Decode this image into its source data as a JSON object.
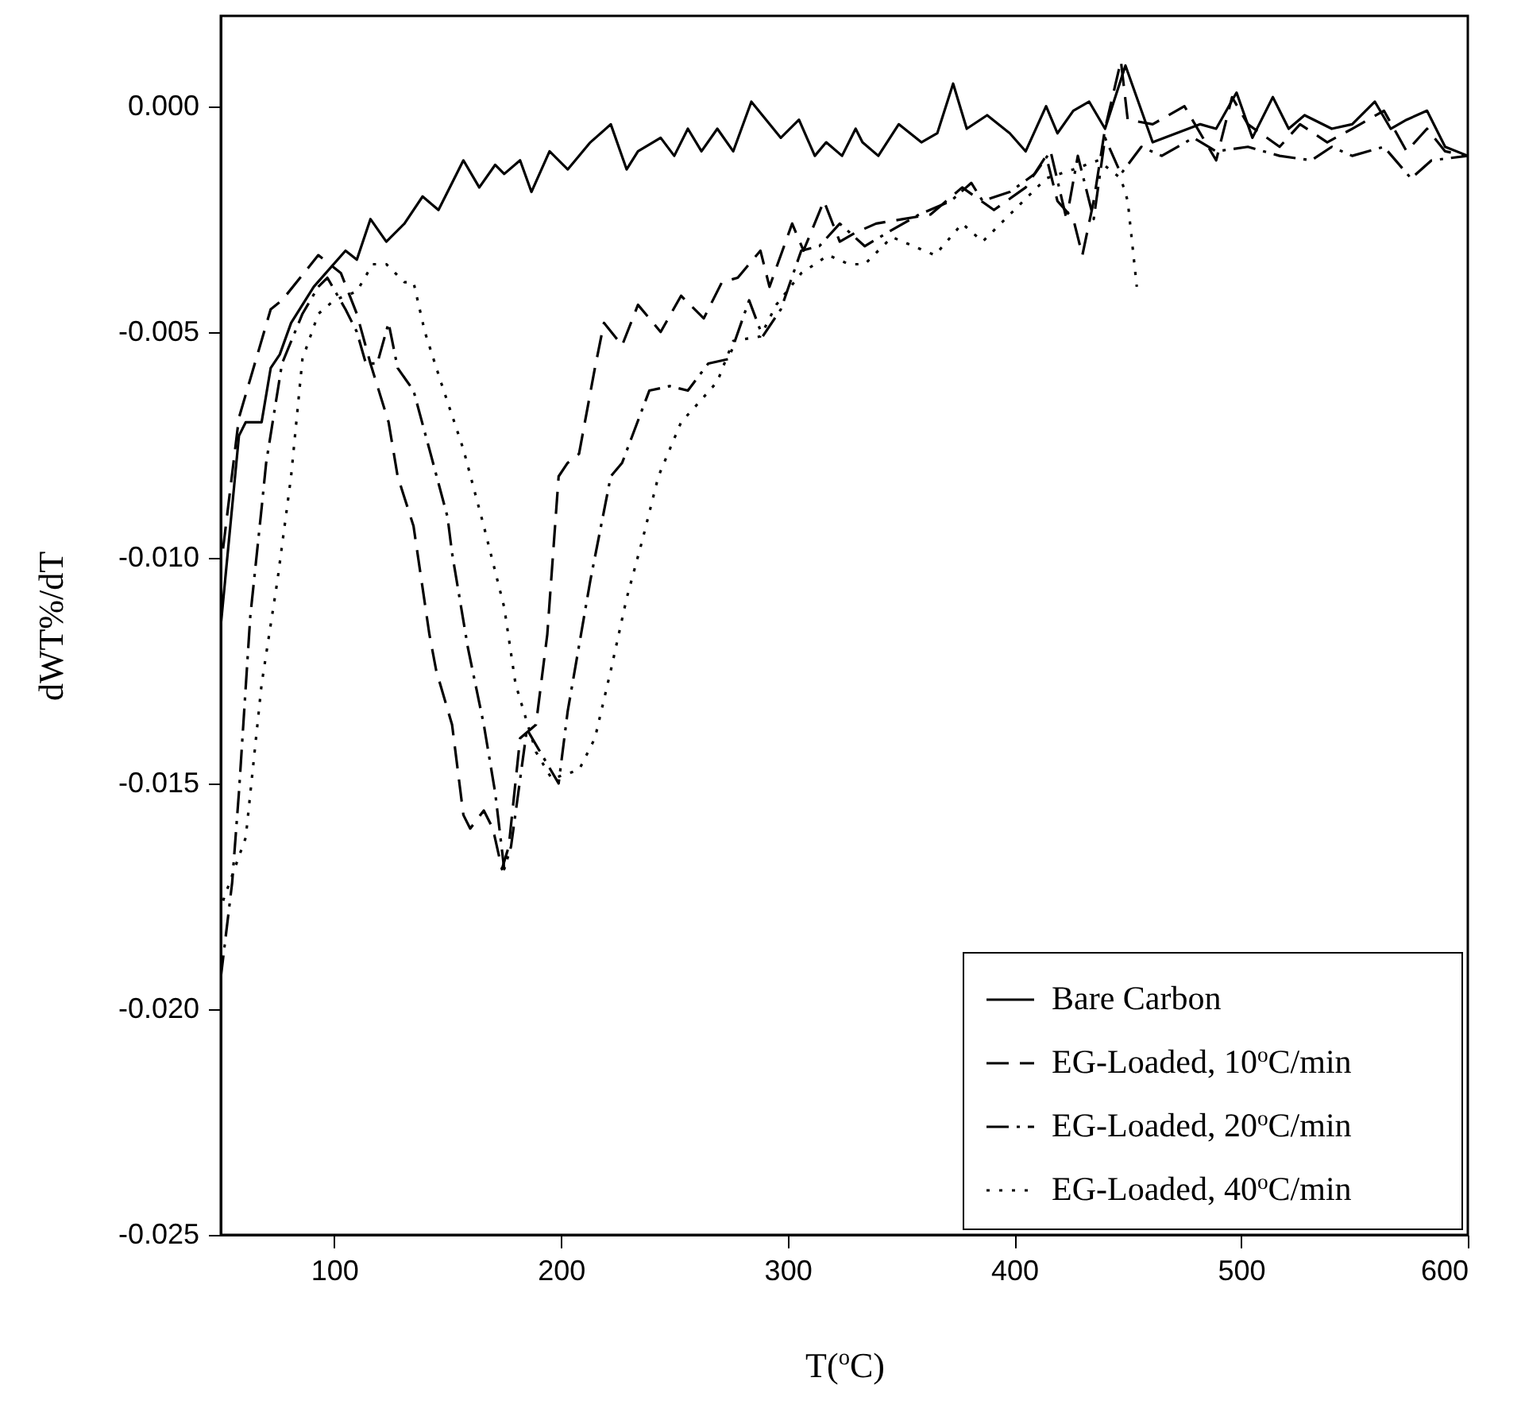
{
  "chart_data": {
    "type": "line",
    "xlabel": "T($^{o}$C)",
    "ylabel": "dWT%/dT",
    "xlim": [
      50,
      600
    ],
    "ylim": [
      -0.025,
      0.002
    ],
    "xticks": [
      100,
      200,
      300,
      400,
      500,
      600
    ],
    "yticks": [
      {
        "value": -0.025,
        "label": "-0.025"
      },
      {
        "value": -0.02,
        "label": "-0.020"
      },
      {
        "value": -0.015,
        "label": "-0.015"
      },
      {
        "value": -0.01,
        "label": "-0.010"
      },
      {
        "value": -0.005,
        "label": "-0.005"
      },
      {
        "value": 0,
        "label": "0.000"
      }
    ],
    "grid": false,
    "legend": "bottom right",
    "series": [
      {
        "name": "Bare Carbon",
        "color": "#000000",
        "line_style": "solid",
        "x": [
          50,
          58,
          61,
          68,
          72,
          76,
          81,
          86,
          91,
          105,
          110,
          116,
          123,
          131,
          139,
          146,
          157,
          164,
          171,
          175,
          182,
          187,
          195,
          203,
          213,
          222,
          229,
          234,
          244,
          250,
          256,
          262,
          269,
          276,
          284,
          297,
          305,
          312,
          317,
          324,
          330,
          333,
          340,
          349,
          359,
          366,
          373,
          379,
          388,
          398,
          405,
          414,
          419,
          426,
          433,
          440,
          449,
          461,
          482,
          489,
          498,
          505,
          514,
          521,
          528,
          540,
          549,
          559,
          566,
          573,
          582,
          590,
          600
        ],
        "values": [
          -0.0115,
          -0.0073,
          -0.007,
          -0.007,
          -0.0058,
          -0.0055,
          -0.0048,
          -0.0044,
          -0.004,
          -0.0032,
          -0.0034,
          -0.0025,
          -0.003,
          -0.0026,
          -0.002,
          -0.0023,
          -0.0012,
          -0.0018,
          -0.0013,
          -0.0015,
          -0.0012,
          -0.0019,
          -0.001,
          -0.0014,
          -0.0008,
          -0.0004,
          -0.0014,
          -0.001,
          -0.0007,
          -0.0011,
          -0.0005,
          -0.001,
          -0.0005,
          -0.001,
          0.0001,
          -0.0007,
          -0.0003,
          -0.0011,
          -0.0008,
          -0.0011,
          -0.0005,
          -0.0008,
          -0.0011,
          -0.0004,
          -0.0008,
          -0.0006,
          0.0005,
          -0.0005,
          -0.0002,
          -0.0006,
          -0.001,
          0,
          -0.0006,
          -0.0001,
          0.0001,
          -0.0005,
          0.0009,
          -0.0008,
          -0.0004,
          -0.0005,
          0.0003,
          -0.0007,
          0.0002,
          -0.0005,
          -0.0002,
          -0.0005,
          -0.0004,
          0.0001,
          -0.0005,
          -0.0003,
          -0.0001,
          -0.0009,
          -0.0011
        ]
      },
      {
        "name": "EG-Loaded, 10$^{o}$C/min",
        "color": "#000000",
        "line_style": "dashed",
        "x": [
          51,
          58,
          72,
          77,
          93,
          103,
          110,
          116,
          124,
          128,
          135,
          142,
          145,
          152,
          157,
          160,
          166,
          170,
          174,
          177,
          182,
          189,
          194,
          199,
          203,
          208,
          215,
          219,
          227,
          234,
          244,
          253,
          263,
          271,
          278,
          288,
          292,
          302,
          307,
          316,
          323,
          330,
          339,
          351,
          363,
          377,
          391,
          405,
          414,
          419,
          426,
          430,
          435,
          440,
          447,
          450,
          461,
          475,
          489,
          496,
          503,
          517,
          526,
          538,
          549,
          563,
          573,
          582,
          590,
          600
        ],
        "values": [
          -0.0098,
          -0.0069,
          -0.0045,
          -0.0043,
          -0.0033,
          -0.0037,
          -0.0046,
          -0.0057,
          -0.007,
          -0.0082,
          -0.0093,
          -0.0117,
          -0.0125,
          -0.0137,
          -0.0157,
          -0.016,
          -0.0156,
          -0.016,
          -0.0169,
          -0.0164,
          -0.014,
          -0.0137,
          -0.0117,
          -0.0082,
          -0.0079,
          -0.0077,
          -0.0058,
          -0.0048,
          -0.0053,
          -0.0044,
          -0.005,
          -0.0042,
          -0.0047,
          -0.0039,
          -0.0038,
          -0.0032,
          -0.004,
          -0.0026,
          -0.0032,
          -0.0021,
          -0.003,
          -0.0028,
          -0.0026,
          -0.0025,
          -0.0024,
          -0.0018,
          -0.0023,
          -0.0018,
          -0.0011,
          -0.0021,
          -0.0025,
          -0.0033,
          -0.0021,
          -0.0005,
          0.001,
          -0.0003,
          -0.0004,
          0,
          -0.0012,
          0.0002,
          -0.0004,
          -0.0009,
          -0.0004,
          -0.0008,
          -0.0005,
          -0.0001,
          -0.001,
          -0.0005,
          -0.001,
          -0.0011
        ]
      },
      {
        "name": "EG-Loaded, 20$^{o}$C/min",
        "color": "#000000",
        "line_style": "dashdot",
        "x": [
          50,
          55,
          58,
          63,
          68,
          70,
          77,
          86,
          93,
          97,
          105,
          110,
          114,
          119,
          124,
          128,
          135,
          142,
          150,
          152,
          159,
          166,
          171,
          175,
          178,
          185,
          199,
          203,
          213,
          222,
          227,
          239,
          248,
          256,
          265,
          274,
          283,
          289,
          297,
          306,
          314,
          323,
          334,
          344,
          358,
          372,
          381,
          386,
          398,
          409,
          416,
          423,
          428,
          435,
          440,
          447,
          456,
          465,
          479,
          489,
          503,
          517,
          531,
          540,
          549,
          563,
          575,
          584,
          600
        ],
        "values": [
          -0.0193,
          -0.0172,
          -0.0152,
          -0.0113,
          -0.0089,
          -0.0079,
          -0.0057,
          -0.0046,
          -0.004,
          -0.0038,
          -0.0045,
          -0.005,
          -0.0057,
          -0.0057,
          -0.0048,
          -0.0058,
          -0.0063,
          -0.0076,
          -0.0091,
          -0.0099,
          -0.012,
          -0.0137,
          -0.0152,
          -0.0169,
          -0.0164,
          -0.0138,
          -0.015,
          -0.0134,
          -0.0105,
          -0.0082,
          -0.0079,
          -0.0063,
          -0.0062,
          -0.0063,
          -0.0057,
          -0.0056,
          -0.0043,
          -0.0051,
          -0.0045,
          -0.0032,
          -0.0031,
          -0.0026,
          -0.0031,
          -0.0028,
          -0.0024,
          -0.0021,
          -0.0017,
          -0.0021,
          -0.0019,
          -0.0015,
          -0.001,
          -0.0025,
          -0.0011,
          -0.0025,
          -0.0007,
          -0.0015,
          -0.0009,
          -0.0011,
          -0.0007,
          -0.001,
          -0.0009,
          -0.0011,
          -0.0012,
          -0.0009,
          -0.0011,
          -0.0009,
          -0.0016,
          -0.0012,
          -0.0011
        ]
      },
      {
        "name": "EG-Loaded, 40$^{o}$C/min",
        "color": "#000000",
        "line_style": "dotted",
        "x": [
          51,
          61,
          68,
          75,
          81,
          86,
          93,
          100,
          110,
          117,
          123,
          131,
          135,
          140,
          147,
          157,
          166,
          175,
          180,
          189,
          196,
          208,
          215,
          222,
          229,
          236,
          243,
          253,
          262,
          269,
          276,
          288,
          295,
          306,
          318,
          327,
          334,
          346,
          365,
          377,
          386,
          400,
          414,
          426,
          437,
          447,
          450,
          454
        ],
        "values": [
          -0.0176,
          -0.0162,
          -0.0128,
          -0.0105,
          -0.0082,
          -0.0056,
          -0.0046,
          -0.0043,
          -0.0041,
          -0.0035,
          -0.0035,
          -0.0039,
          -0.0039,
          -0.005,
          -0.0061,
          -0.0076,
          -0.0093,
          -0.0111,
          -0.0128,
          -0.0143,
          -0.0149,
          -0.0147,
          -0.014,
          -0.0125,
          -0.0109,
          -0.0096,
          -0.0082,
          -0.007,
          -0.0065,
          -0.0061,
          -0.0052,
          -0.0051,
          -0.0044,
          -0.0037,
          -0.0033,
          -0.0035,
          -0.0035,
          -0.0029,
          -0.0033,
          -0.0026,
          -0.003,
          -0.0023,
          -0.0016,
          -0.0014,
          -0.0012,
          -0.0016,
          -0.0021,
          -0.004
        ]
      }
    ]
  }
}
